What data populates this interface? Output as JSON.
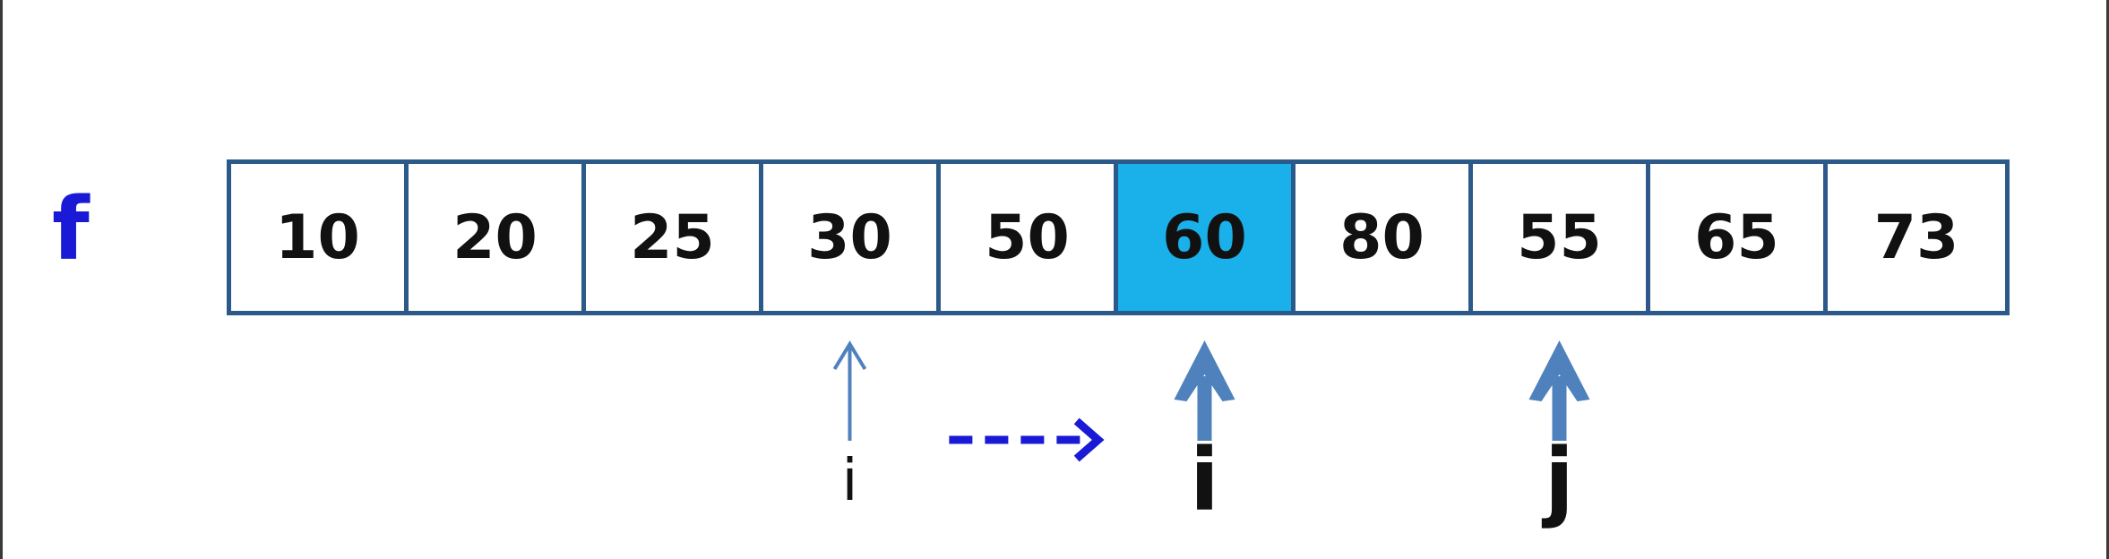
{
  "array": {
    "label": "f",
    "values": [
      "10",
      "20",
      "25",
      "30",
      "50",
      "60",
      "80",
      "55",
      "65",
      "73"
    ],
    "highlight_index": 5,
    "highlight_color": "#1ab0ea",
    "border_color": "#2b5a8a"
  },
  "pointers": [
    {
      "label": "i",
      "index": 3,
      "style": "thin"
    },
    {
      "label": "i",
      "index": 5,
      "style": "bold"
    },
    {
      "label": "j",
      "index": 7,
      "style": "bold"
    }
  ],
  "move_arrow": {
    "color": "#1a1ad6",
    "style": "dashed",
    "from_index": 3,
    "to_index": 5
  },
  "colors": {
    "label": "#1a1ad6",
    "arrow": "#4f81bd"
  }
}
